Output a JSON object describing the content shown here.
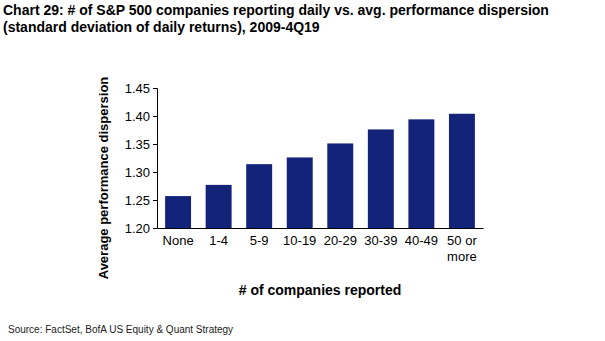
{
  "chart_data": {
    "type": "bar",
    "title": "Chart 29: # of S&P 500 companies reporting daily vs. avg. performance dispersion (standard deviation of daily returns), 2009-4Q19",
    "x_label": "# of companies reported",
    "y_label": "Average performance dispersion",
    "source": "Source: FactSet, BofA US Equity & Quant Strategy",
    "categories": [
      "None",
      "1-4",
      "5-9",
      "10-19",
      "20-29",
      "30-39",
      "40-49",
      "50 or more"
    ],
    "values": [
      1.257,
      1.277,
      1.314,
      1.326,
      1.351,
      1.376,
      1.394,
      1.404
    ],
    "color": "#14237a",
    "ylim": [
      1.2,
      1.45
    ],
    "yticks": [
      {
        "value": 1.2,
        "label": "1.20"
      },
      1.25,
      {
        "value": 1.3,
        "label": "1.30"
      },
      1.35,
      {
        "value": 1.4,
        "label": "1.40"
      },
      1.45
    ],
    "grid": false,
    "data_labels": false
  }
}
